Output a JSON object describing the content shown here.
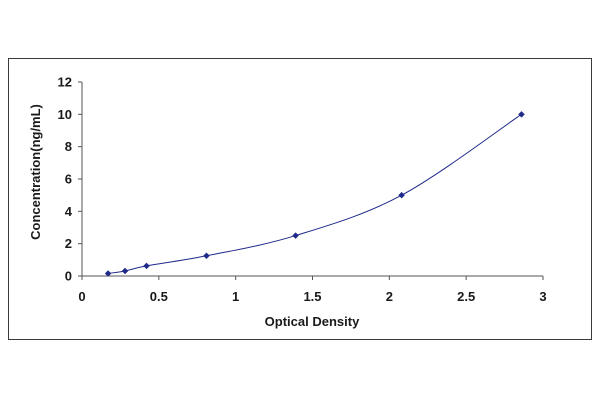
{
  "chart_data": {
    "type": "line",
    "title": "",
    "xlabel": "Optical Density",
    "ylabel": "Concentration(ng/mL)",
    "xlim": [
      0,
      3
    ],
    "ylim": [
      0,
      12
    ],
    "x_ticks": [
      "0",
      "0.5",
      "1",
      "1.5",
      "2",
      "2.5",
      "3"
    ],
    "y_ticks": [
      "0",
      "2",
      "4",
      "6",
      "8",
      "10",
      "12"
    ],
    "grid": false,
    "legend": "none",
    "series": [
      {
        "x": [
          0.17,
          0.28,
          0.42,
          0.81,
          1.39,
          2.08,
          2.86
        ],
        "y": [
          0.156,
          0.312,
          0.625,
          1.25,
          2.5,
          5,
          10
        ],
        "marker": "diamond",
        "line": "smooth",
        "color": "#1f2a8a"
      }
    ]
  }
}
